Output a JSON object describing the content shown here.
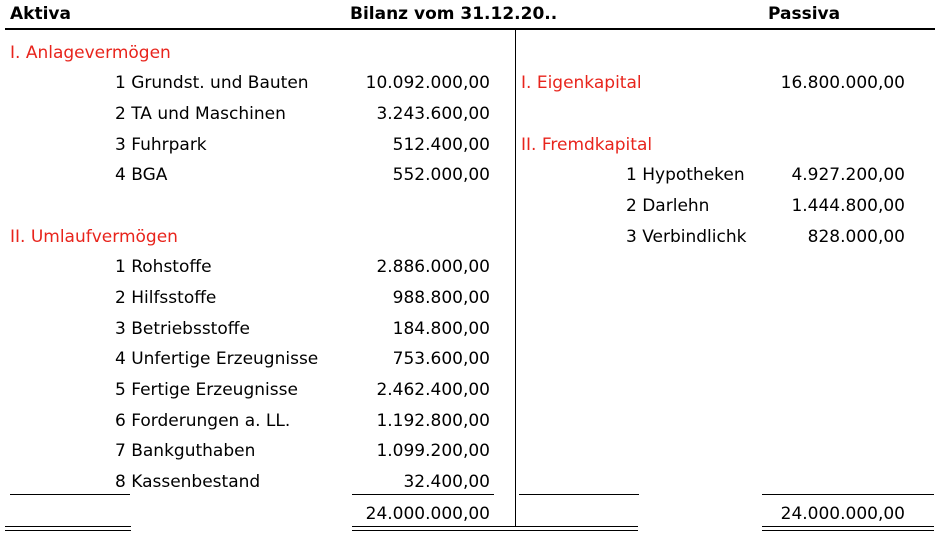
{
  "header": {
    "left": "Aktiva",
    "center": "Bilanz vom 31.12.20..",
    "right": "Passiva"
  },
  "aktiva": {
    "group1": {
      "title": "I. Anlagevermögen",
      "items": [
        {
          "label": "1 Grundst. und Bauten",
          "value": "10.092.000,00"
        },
        {
          "label": "2 TA und Maschinen",
          "value": "3.243.600,00"
        },
        {
          "label": "3 Fuhrpark",
          "value": "512.400,00"
        },
        {
          "label": "4 BGA",
          "value": "552.000,00"
        }
      ]
    },
    "group2": {
      "title": "II. Umlaufvermögen",
      "items": [
        {
          "label": "1 Rohstoffe",
          "value": "2.886.000,00"
        },
        {
          "label": "2 Hilfsstoffe",
          "value": "988.800,00"
        },
        {
          "label": "3 Betriebsstoffe",
          "value": "184.800,00"
        },
        {
          "label": "4 Unfertige Erzeugnisse",
          "value": "753.600,00"
        },
        {
          "label": "5 Fertige Erzeugnisse",
          "value": "2.462.400,00"
        },
        {
          "label": "6 Forderungen a. LL.",
          "value": "1.192.800,00"
        },
        {
          "label": "7 Bankguthaben",
          "value": "1.099.200,00"
        },
        {
          "label": "8 Kassenbestand",
          "value": "32.400,00"
        }
      ]
    },
    "total": "24.000.000,00"
  },
  "passiva": {
    "group1": {
      "title": "I. Eigenkapital",
      "value": "16.800.000,00"
    },
    "group2": {
      "title": "II. Fremdkapital",
      "items": [
        {
          "label": "1 Hypotheken",
          "value": "4.927.200,00"
        },
        {
          "label": "2 Darlehn",
          "value": "1.444.800,00"
        },
        {
          "label": "3 Verbindlichk",
          "value": "828.000,00"
        }
      ]
    },
    "total": "24.000.000,00"
  }
}
